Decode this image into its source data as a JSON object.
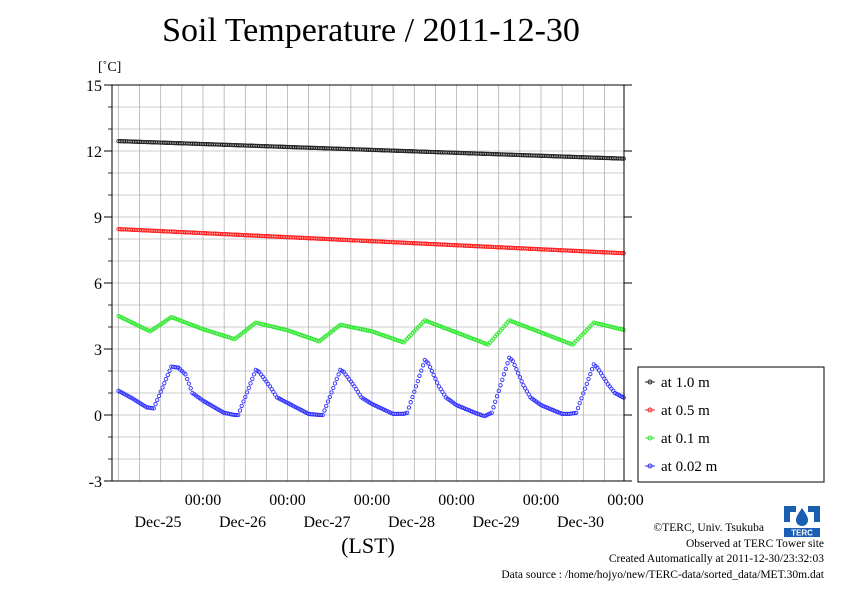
{
  "chart_data": {
    "type": "line",
    "title": "Soil Temperature / 2011-12-30",
    "ylabel": "[˚C]",
    "xlabel": "(LST)",
    "ylim": [
      -3,
      15
    ],
    "yticks": [
      "-3",
      "0",
      "3",
      "6",
      "9",
      "12",
      "15"
    ],
    "x_range_hours": [
      0,
      144
    ],
    "x_ticks": [
      {
        "top": "00:00",
        "bottom": "Dec-25"
      },
      {
        "top": "00:00",
        "bottom": "Dec-26"
      },
      {
        "top": "00:00",
        "bottom": "Dec-27"
      },
      {
        "top": "00:00",
        "bottom": "Dec-28"
      },
      {
        "top": "00:00",
        "bottom": "Dec-29"
      },
      {
        "top": "00:00",
        "bottom": "Dec-30"
      }
    ],
    "grid": true,
    "legend_position": "right",
    "series": [
      {
        "name": "at 1.0 m",
        "color": "#222222",
        "start": 12.45,
        "end": 11.65
      },
      {
        "name": "at 0.5 m",
        "color": "#ff2020",
        "start": 8.45,
        "end": 7.35
      },
      {
        "name": "at 0.1 m",
        "color": "#30e830",
        "points": [
          [
            0,
            4.5
          ],
          [
            9,
            3.8
          ],
          [
            15,
            4.45
          ],
          [
            24,
            3.9
          ],
          [
            33,
            3.45
          ],
          [
            39,
            4.2
          ],
          [
            48,
            3.85
          ],
          [
            57,
            3.35
          ],
          [
            63,
            4.1
          ],
          [
            72,
            3.8
          ],
          [
            81,
            3.3
          ],
          [
            87,
            4.3
          ],
          [
            96,
            3.75
          ],
          [
            105,
            3.2
          ],
          [
            111,
            4.3
          ],
          [
            120,
            3.75
          ],
          [
            129,
            3.2
          ],
          [
            135,
            4.2
          ],
          [
            144,
            3.85
          ]
        ]
      },
      {
        "name": "at 0.02 m",
        "color": "#3030ff",
        "points": [
          [
            0,
            1.1
          ],
          [
            4,
            0.75
          ],
          [
            8,
            0.35
          ],
          [
            10,
            0.3
          ],
          [
            15,
            2.2
          ],
          [
            17,
            2.15
          ],
          [
            19,
            1.85
          ],
          [
            21,
            1.0
          ],
          [
            24,
            0.65
          ],
          [
            30,
            0.1
          ],
          [
            33,
            0.0
          ],
          [
            34,
            0.0
          ],
          [
            39,
            2.05
          ],
          [
            40,
            1.95
          ],
          [
            43,
            1.3
          ],
          [
            45,
            0.8
          ],
          [
            48,
            0.55
          ],
          [
            54,
            0.05
          ],
          [
            57,
            0.0
          ],
          [
            58,
            0.0
          ],
          [
            63,
            2.05
          ],
          [
            64,
            1.95
          ],
          [
            67,
            1.3
          ],
          [
            69,
            0.8
          ],
          [
            72,
            0.5
          ],
          [
            78,
            0.05
          ],
          [
            81,
            0.05
          ],
          [
            82,
            0.1
          ],
          [
            87,
            2.5
          ],
          [
            88,
            2.35
          ],
          [
            91,
            1.3
          ],
          [
            93,
            0.8
          ],
          [
            96,
            0.45
          ],
          [
            102,
            0.05
          ],
          [
            104,
            -0.05
          ],
          [
            106,
            0.1
          ],
          [
            111,
            2.6
          ],
          [
            112,
            2.45
          ],
          [
            115,
            1.35
          ],
          [
            117,
            0.8
          ],
          [
            120,
            0.45
          ],
          [
            126,
            0.05
          ],
          [
            128,
            0.05
          ],
          [
            130,
            0.1
          ],
          [
            135,
            2.3
          ],
          [
            136,
            2.15
          ],
          [
            139,
            1.4
          ],
          [
            141,
            1.0
          ],
          [
            144,
            0.75
          ]
        ]
      }
    ]
  },
  "credits": {
    "copyright": "©TERC, Univ. Tsukuba",
    "observed": "Observed at TERC Tower site",
    "created": "Created Automatically at 2011-12-30/23:32:03",
    "source": "Data source : /home/hojyo/new/TERC-data/sorted_data/MET.30m.dat"
  },
  "logo": {
    "text": "TERC",
    "color": "#1a5fb4"
  }
}
